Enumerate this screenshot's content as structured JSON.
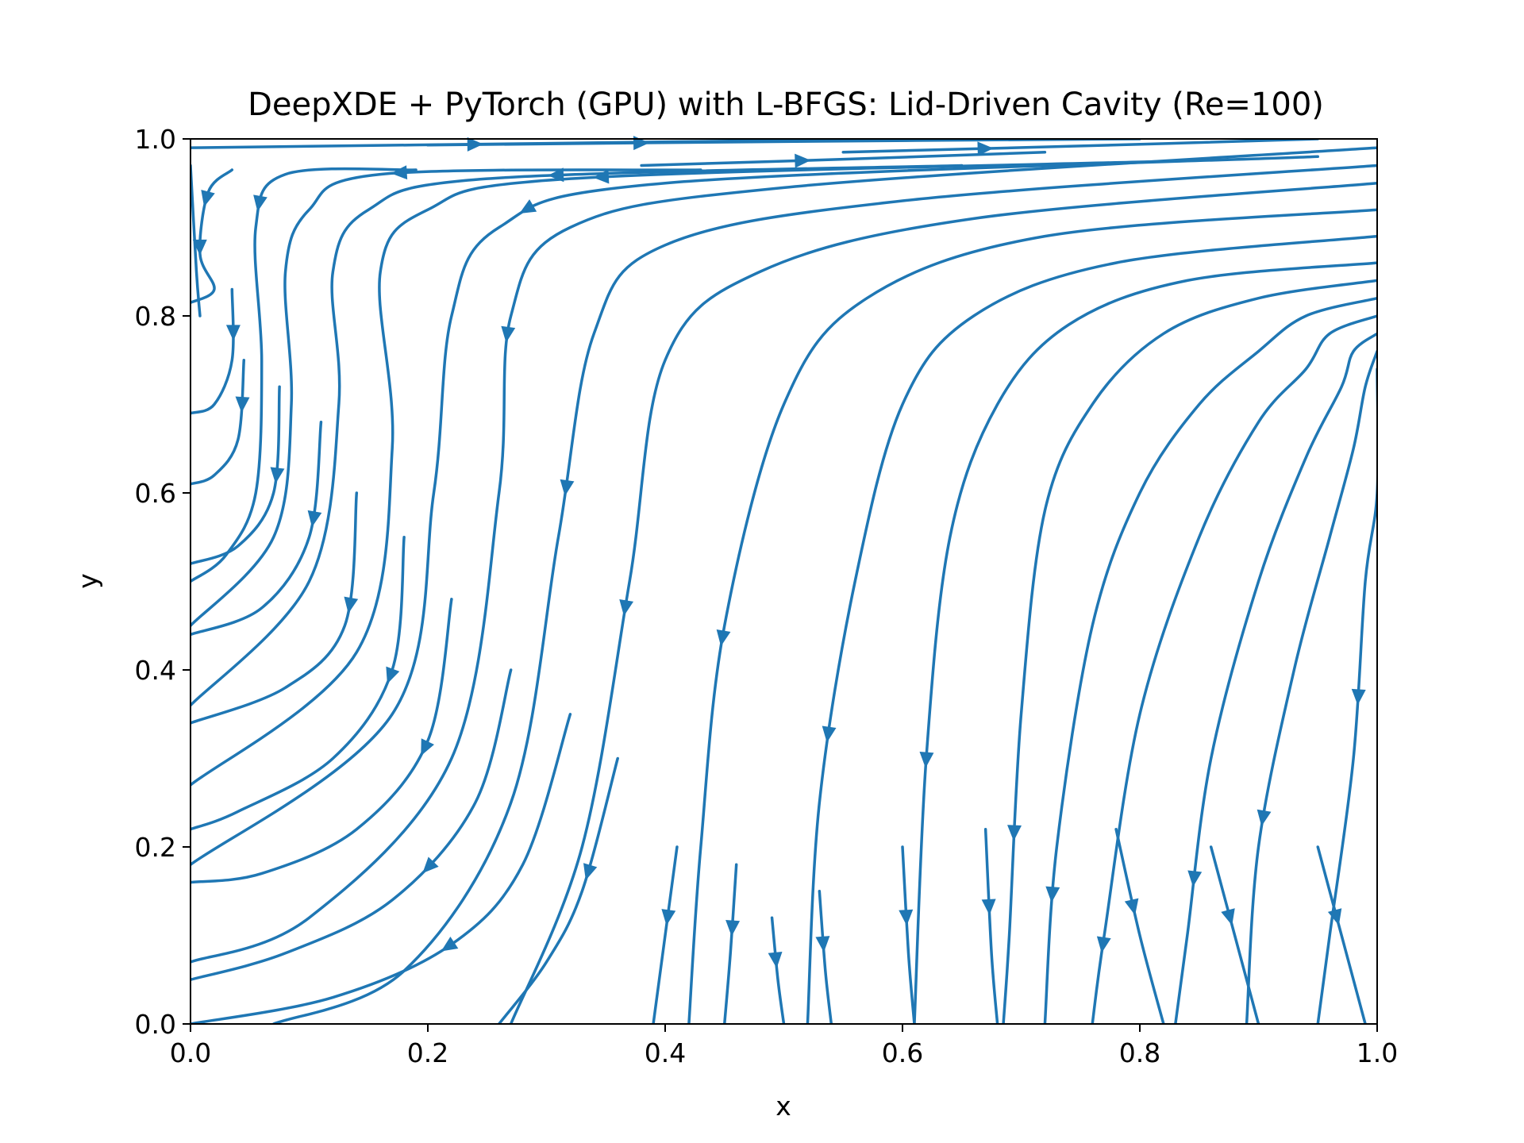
{
  "chart_data": {
    "type": "streamplot",
    "title": "DeepXDE + PyTorch (GPU) with L-BFGS: Lid-Driven Cavity (Re=100)",
    "xlabel": "x",
    "ylabel": "y",
    "xlim": [
      0.0,
      1.0
    ],
    "ylim": [
      0.0,
      1.0
    ],
    "xticks": [
      "0.0",
      "0.2",
      "0.4",
      "0.6",
      "0.8",
      "1.0"
    ],
    "yticks": [
      "0.0",
      "0.2",
      "0.4",
      "0.6",
      "0.8",
      "1.0"
    ],
    "grid": false,
    "legend": "none",
    "line_color": "#1f77b4",
    "series": [
      {
        "points": [
          [
            0.0,
            0.99
          ],
          [
            0.3,
            0.995
          ],
          [
            0.6,
            1.0
          ]
        ],
        "arrows": [
          0.4
        ]
      },
      {
        "points": [
          [
            0.2,
            0.993
          ],
          [
            0.5,
            0.997
          ],
          [
            0.8,
            1.0
          ]
        ],
        "arrows": [
          0.3
        ]
      },
      {
        "points": [
          [
            0.38,
            0.97
          ],
          [
            0.55,
            0.977
          ],
          [
            0.72,
            0.985
          ]
        ],
        "arrows": [
          0.4
        ]
      },
      {
        "points": [
          [
            0.55,
            0.985
          ],
          [
            0.75,
            0.992
          ],
          [
            0.95,
            1.0
          ]
        ],
        "arrows": [
          0.3
        ]
      },
      {
        "points": [
          [
            0.035,
            0.965
          ],
          [
            0.015,
            0.94
          ],
          [
            0.008,
            0.87
          ],
          [
            0.02,
            0.83
          ],
          [
            0.0,
            0.815
          ]
        ],
        "arrows": [
          0.25,
          0.55
        ]
      },
      {
        "points": [
          [
            0.19,
            0.965
          ],
          [
            0.08,
            0.96
          ],
          [
            0.055,
            0.9
          ],
          [
            0.06,
            0.75
          ],
          [
            0.055,
            0.6
          ],
          [
            0.03,
            0.53
          ],
          [
            0.0,
            0.5
          ]
        ],
        "arrows": [
          0.3
        ]
      },
      {
        "points": [
          [
            0.43,
            0.965
          ],
          [
            0.16,
            0.96
          ],
          [
            0.1,
            0.92
          ],
          [
            0.08,
            0.85
          ],
          [
            0.085,
            0.7
          ],
          [
            0.07,
            0.55
          ],
          [
            0.0,
            0.45
          ]
        ],
        "arrows": [
          0.35
        ]
      },
      {
        "points": [
          [
            0.65,
            0.97
          ],
          [
            0.25,
            0.955
          ],
          [
            0.15,
            0.92
          ],
          [
            0.12,
            0.85
          ],
          [
            0.125,
            0.7
          ],
          [
            0.1,
            0.5
          ],
          [
            0.0,
            0.36
          ]
        ],
        "arrows": [
          0.35
        ]
      },
      {
        "points": [
          [
            0.83,
            0.975
          ],
          [
            0.32,
            0.955
          ],
          [
            0.2,
            0.92
          ],
          [
            0.16,
            0.85
          ],
          [
            0.17,
            0.65
          ],
          [
            0.14,
            0.42
          ],
          [
            0.0,
            0.27
          ]
        ],
        "arrows": [
          0.4
        ]
      },
      {
        "points": [
          [
            0.95,
            0.98
          ],
          [
            0.4,
            0.95
          ],
          [
            0.26,
            0.9
          ],
          [
            0.22,
            0.8
          ],
          [
            0.205,
            0.6
          ],
          [
            0.17,
            0.35
          ],
          [
            0.0,
            0.18
          ]
        ],
        "arrows": [
          0.5
        ]
      },
      {
        "points": [
          [
            1.0,
            0.99
          ],
          [
            0.5,
            0.945
          ],
          [
            0.32,
            0.9
          ],
          [
            0.27,
            0.8
          ],
          [
            0.26,
            0.6
          ],
          [
            0.22,
            0.3
          ],
          [
            0.1,
            0.12
          ],
          [
            0.0,
            0.07
          ]
        ],
        "arrows": [
          0.55
        ]
      },
      {
        "points": [
          [
            1.0,
            0.97
          ],
          [
            0.6,
            0.93
          ],
          [
            0.4,
            0.88
          ],
          [
            0.34,
            0.78
          ],
          [
            0.31,
            0.55
          ],
          [
            0.27,
            0.25
          ],
          [
            0.18,
            0.06
          ],
          [
            0.07,
            0.0
          ]
        ],
        "arrows": [
          0.6
        ]
      },
      {
        "points": [
          [
            1.0,
            0.95
          ],
          [
            0.66,
            0.91
          ],
          [
            0.48,
            0.85
          ],
          [
            0.4,
            0.75
          ],
          [
            0.37,
            0.5
          ],
          [
            0.33,
            0.2
          ],
          [
            0.27,
            0.0
          ]
        ],
        "arrows": [
          0.7
        ]
      },
      {
        "points": [
          [
            1.0,
            0.92
          ],
          [
            0.72,
            0.89
          ],
          [
            0.57,
            0.82
          ],
          [
            0.5,
            0.7
          ],
          [
            0.45,
            0.45
          ],
          [
            0.43,
            0.2
          ],
          [
            0.42,
            0.0
          ]
        ],
        "arrows": [
          0.7
        ]
      },
      {
        "points": [
          [
            1.0,
            0.89
          ],
          [
            0.78,
            0.86
          ],
          [
            0.66,
            0.8
          ],
          [
            0.6,
            0.7
          ],
          [
            0.56,
            0.5
          ],
          [
            0.53,
            0.25
          ],
          [
            0.52,
            0.0
          ]
        ],
        "arrows": [
          0.75
        ]
      },
      {
        "points": [
          [
            1.0,
            0.86
          ],
          [
            0.84,
            0.84
          ],
          [
            0.74,
            0.79
          ],
          [
            0.68,
            0.7
          ],
          [
            0.64,
            0.55
          ],
          [
            0.62,
            0.3
          ],
          [
            0.61,
            0.0
          ]
        ],
        "arrows": [
          0.75
        ]
      },
      {
        "points": [
          [
            1.0,
            0.84
          ],
          [
            0.9,
            0.82
          ],
          [
            0.82,
            0.78
          ],
          [
            0.76,
            0.7
          ],
          [
            0.72,
            0.58
          ],
          [
            0.7,
            0.35
          ],
          [
            0.69,
            0.1
          ],
          [
            0.685,
            0.0
          ]
        ],
        "arrows": [
          0.8
        ]
      },
      {
        "points": [
          [
            1.0,
            0.82
          ],
          [
            0.94,
            0.8
          ],
          [
            0.9,
            0.76
          ],
          [
            0.85,
            0.7
          ],
          [
            0.8,
            0.6
          ],
          [
            0.76,
            0.45
          ],
          [
            0.73,
            0.2
          ],
          [
            0.72,
            0.0
          ]
        ],
        "arrows": [
          0.85
        ]
      },
      {
        "points": [
          [
            1.0,
            0.8
          ],
          [
            0.96,
            0.78
          ],
          [
            0.94,
            0.74
          ],
          [
            0.9,
            0.68
          ],
          [
            0.85,
            0.55
          ],
          [
            0.8,
            0.35
          ],
          [
            0.77,
            0.1
          ],
          [
            0.76,
            0.0
          ]
        ],
        "arrows": [
          0.9
        ]
      },
      {
        "points": [
          [
            1.0,
            0.78
          ],
          [
            0.98,
            0.76
          ],
          [
            0.97,
            0.72
          ],
          [
            0.94,
            0.64
          ],
          [
            0.9,
            0.5
          ],
          [
            0.86,
            0.3
          ],
          [
            0.84,
            0.1
          ],
          [
            0.83,
            0.0
          ]
        ],
        "arrows": [
          0.8
        ]
      },
      {
        "points": [
          [
            1.0,
            0.76
          ],
          [
            0.99,
            0.72
          ],
          [
            0.98,
            0.65
          ],
          [
            0.96,
            0.55
          ],
          [
            0.93,
            0.4
          ],
          [
            0.9,
            0.2
          ],
          [
            0.89,
            0.0
          ]
        ],
        "arrows": [
          0.7
        ]
      },
      {
        "points": [
          [
            1.0,
            0.74
          ],
          [
            1.0,
            0.6
          ],
          [
            0.99,
            0.5
          ],
          [
            0.98,
            0.3
          ],
          [
            0.96,
            0.1
          ],
          [
            0.95,
            0.0
          ]
        ],
        "arrows": [
          0.5
        ]
      },
      {
        "points": [
          [
            0.0,
            0.97
          ],
          [
            0.005,
            0.85
          ],
          [
            0.008,
            0.8
          ]
        ],
        "arrows": []
      },
      {
        "points": [
          [
            0.035,
            0.83
          ],
          [
            0.035,
            0.75
          ],
          [
            0.02,
            0.7
          ],
          [
            0.0,
            0.69
          ]
        ],
        "arrows": [
          0.3
        ]
      },
      {
        "points": [
          [
            0.045,
            0.75
          ],
          [
            0.04,
            0.66
          ],
          [
            0.02,
            0.62
          ],
          [
            0.0,
            0.61
          ]
        ],
        "arrows": [
          0.3
        ]
      },
      {
        "points": [
          [
            0.075,
            0.72
          ],
          [
            0.07,
            0.6
          ],
          [
            0.04,
            0.54
          ],
          [
            0.0,
            0.52
          ]
        ],
        "arrows": [
          0.4
        ]
      },
      {
        "points": [
          [
            0.11,
            0.68
          ],
          [
            0.1,
            0.55
          ],
          [
            0.06,
            0.47
          ],
          [
            0.0,
            0.44
          ]
        ],
        "arrows": [
          0.35
        ]
      },
      {
        "points": [
          [
            0.14,
            0.6
          ],
          [
            0.13,
            0.45
          ],
          [
            0.08,
            0.38
          ],
          [
            0.0,
            0.34
          ]
        ],
        "arrows": [
          0.35
        ]
      },
      {
        "points": [
          [
            0.18,
            0.55
          ],
          [
            0.17,
            0.4
          ],
          [
            0.12,
            0.3
          ],
          [
            0.04,
            0.24
          ],
          [
            0.0,
            0.22
          ]
        ],
        "arrows": [
          0.35
        ]
      },
      {
        "points": [
          [
            0.22,
            0.48
          ],
          [
            0.2,
            0.32
          ],
          [
            0.14,
            0.22
          ],
          [
            0.06,
            0.17
          ],
          [
            0.0,
            0.16
          ]
        ],
        "arrows": [
          0.35
        ]
      },
      {
        "points": [
          [
            0.27,
            0.4
          ],
          [
            0.24,
            0.25
          ],
          [
            0.17,
            0.14
          ],
          [
            0.08,
            0.08
          ],
          [
            0.0,
            0.05
          ]
        ],
        "arrows": [
          0.45
        ]
      },
      {
        "points": [
          [
            0.32,
            0.35
          ],
          [
            0.28,
            0.18
          ],
          [
            0.22,
            0.09
          ],
          [
            0.12,
            0.03
          ],
          [
            0.0,
            0.0
          ]
        ],
        "arrows": [
          0.5
        ]
      },
      {
        "points": [
          [
            0.36,
            0.3
          ],
          [
            0.33,
            0.15
          ],
          [
            0.3,
            0.07
          ],
          [
            0.26,
            0.0
          ]
        ],
        "arrows": [
          0.4
        ]
      },
      {
        "points": [
          [
            0.41,
            0.2
          ],
          [
            0.4,
            0.1
          ],
          [
            0.39,
            0.0
          ]
        ],
        "arrows": [
          0.4
        ]
      },
      {
        "points": [
          [
            0.46,
            0.18
          ],
          [
            0.455,
            0.08
          ],
          [
            0.45,
            0.0
          ]
        ],
        "arrows": [
          0.4
        ]
      },
      {
        "points": [
          [
            0.49,
            0.12
          ],
          [
            0.495,
            0.05
          ],
          [
            0.5,
            0.0
          ]
        ],
        "arrows": [
          0.4
        ]
      },
      {
        "points": [
          [
            0.53,
            0.15
          ],
          [
            0.535,
            0.06
          ],
          [
            0.54,
            0.0
          ]
        ],
        "arrows": [
          0.4
        ]
      },
      {
        "points": [
          [
            0.6,
            0.2
          ],
          [
            0.605,
            0.08
          ],
          [
            0.61,
            0.0
          ]
        ],
        "arrows": [
          0.4
        ]
      },
      {
        "points": [
          [
            0.67,
            0.22
          ],
          [
            0.675,
            0.08
          ],
          [
            0.68,
            0.0
          ]
        ],
        "arrows": [
          0.4
        ]
      },
      {
        "points": [
          [
            0.78,
            0.22
          ],
          [
            0.8,
            0.1
          ],
          [
            0.82,
            0.0
          ]
        ],
        "arrows": [
          0.4
        ]
      },
      {
        "points": [
          [
            0.86,
            0.2
          ],
          [
            0.88,
            0.1
          ],
          [
            0.9,
            0.0
          ]
        ],
        "arrows": [
          0.4
        ]
      },
      {
        "points": [
          [
            0.95,
            0.2
          ],
          [
            0.97,
            0.1
          ],
          [
            0.99,
            0.0
          ]
        ],
        "arrows": [
          0.4
        ]
      }
    ]
  }
}
